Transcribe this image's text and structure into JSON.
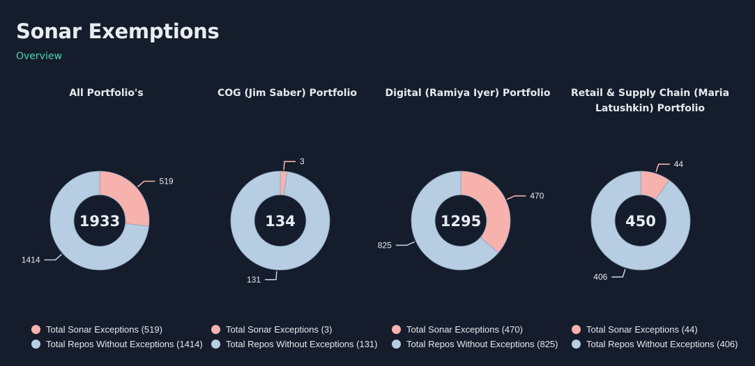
{
  "header": {
    "title": "Sonar Exemptions",
    "subtitle": "Overview"
  },
  "colors": {
    "exceptions": "#f7b2ad",
    "without": "#b6cde2",
    "background": "#151c2c",
    "accent": "#4fd3b1"
  },
  "chart_data": [
    {
      "type": "pie",
      "title": "All Portfolio's",
      "total": "1933",
      "slices": [
        {
          "label": "Total Sonar Exceptions",
          "value": 519
        },
        {
          "label": "Total Repos Without Exceptions",
          "value": 1414
        }
      ],
      "legend": [
        "Total Sonar Exceptions (519)",
        "Total Repos Without Exceptions (1414)"
      ]
    },
    {
      "type": "pie",
      "title": "COG (Jim Saber) Portfolio",
      "total": "134",
      "slices": [
        {
          "label": "Total Sonar Exceptions",
          "value": 3
        },
        {
          "label": "Total Repos Without Exceptions",
          "value": 131
        }
      ],
      "legend": [
        "Total Sonar Exceptions (3)",
        "Total Repos Without Exceptions (131)"
      ]
    },
    {
      "type": "pie",
      "title": "Digital (Ramiya Iyer) Portfolio",
      "total": "1295",
      "slices": [
        {
          "label": "Total Sonar Exceptions",
          "value": 470
        },
        {
          "label": "Total Repos Without Exceptions",
          "value": 825
        }
      ],
      "legend": [
        "Total Sonar Exceptions (470)",
        "Total Repos Without Exceptions (825)"
      ]
    },
    {
      "type": "pie",
      "title": "Retail & Supply Chain (Maria Latushkin) Portfolio",
      "total": "450",
      "slices": [
        {
          "label": "Total Sonar Exceptions",
          "value": 44
        },
        {
          "label": "Total Repos Without Exceptions",
          "value": 406
        }
      ],
      "legend": [
        "Total Sonar Exceptions (44)",
        "Total Repos Without Exceptions (406)"
      ]
    }
  ]
}
